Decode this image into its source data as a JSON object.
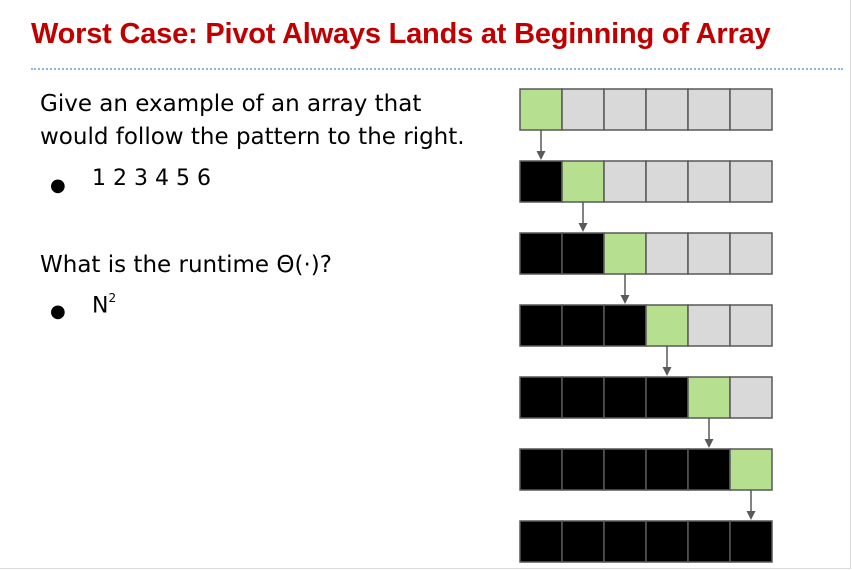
{
  "slide": {
    "title": "Worst Case: Pivot Always Lands at Beginning of Array",
    "question1_line1": "Give an example of an array that",
    "question1_line2": "would follow the pattern to the right.",
    "answer1": "1 2 3 4 5 6",
    "question2": "What is the runtime Θ(·)?",
    "answer2_base": "N",
    "answer2_exp": "2",
    "bullet": "●"
  },
  "diagram": {
    "array_length": 6,
    "rows": [
      {
        "sorted": 0,
        "pivot": 0
      },
      {
        "sorted": 1,
        "pivot": 1
      },
      {
        "sorted": 2,
        "pivot": 2
      },
      {
        "sorted": 3,
        "pivot": 3
      },
      {
        "sorted": 4,
        "pivot": 4
      },
      {
        "sorted": 5,
        "pivot": 5
      },
      {
        "sorted": 6,
        "pivot": null
      }
    ],
    "colors": {
      "sorted": "#000000",
      "pivot": "#b6e08f",
      "unsorted": "#d9d9d9",
      "cell_border": "#595959",
      "arrow": "#595959"
    }
  },
  "colors": {
    "title": "#c00000",
    "rule": "#8eb4e3"
  }
}
